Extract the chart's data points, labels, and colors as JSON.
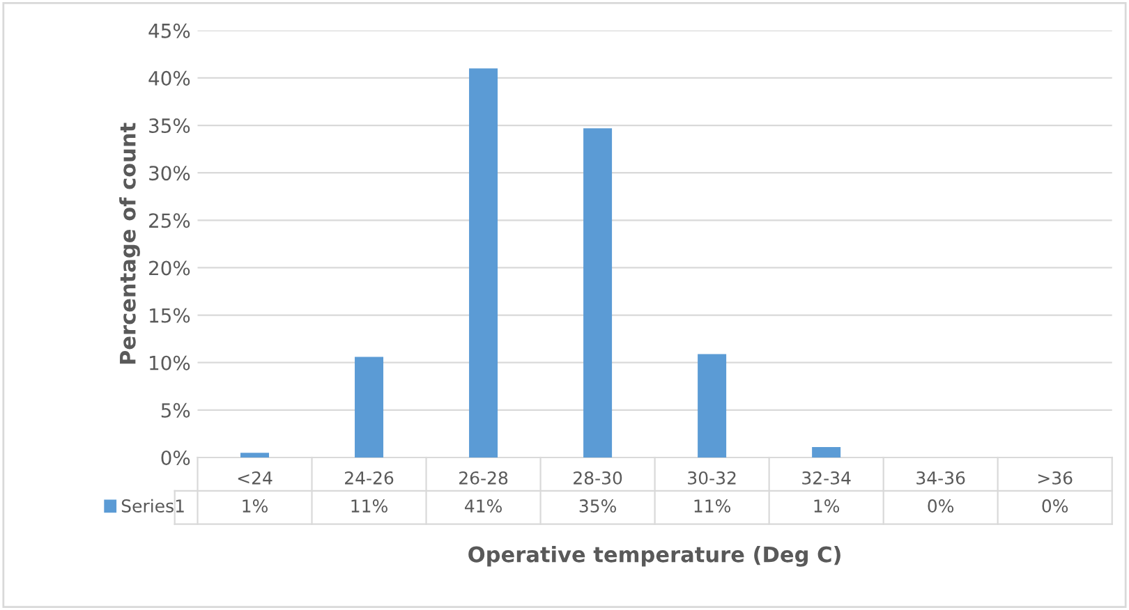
{
  "chart_data": {
    "type": "bar",
    "xlabel": "Operative temperature (Deg C)",
    "ylabel": "Percentage of count",
    "categories": [
      "<24",
      "24-26",
      "26-28",
      "28-30",
      "30-32",
      "32-34",
      "34-36",
      ">36"
    ],
    "series": [
      {
        "name": "Series1",
        "color": "#5b9bd5",
        "values": [
          0.5,
          10.6,
          41,
          34.7,
          10.9,
          1.1,
          0,
          0
        ],
        "value_labels": [
          "1%",
          "11%",
          "41%",
          "35%",
          "11%",
          "1%",
          "0%",
          "0%"
        ]
      }
    ],
    "ylim": [
      0,
      45
    ],
    "yticks": [
      {
        "value": 0,
        "label": "0%"
      },
      {
        "value": 5,
        "label": "5%"
      },
      {
        "value": 10,
        "label": "10%"
      },
      {
        "value": 15,
        "label": "15%"
      },
      {
        "value": 20,
        "label": "20%"
      },
      {
        "value": 25,
        "label": "25%"
      },
      {
        "value": 30,
        "label": "30%"
      },
      {
        "value": 35,
        "label": "35%"
      },
      {
        "value": 40,
        "label": "40%"
      },
      {
        "value": 45,
        "label": "45%"
      }
    ],
    "grid": "y",
    "legend": "bottom"
  }
}
